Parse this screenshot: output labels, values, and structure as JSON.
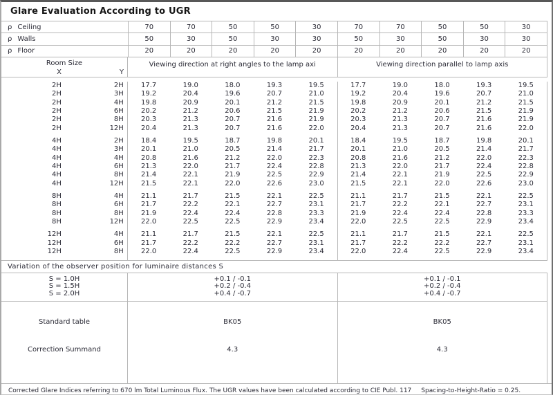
{
  "page": {
    "title": "Glare Evaluation According to UGR",
    "footer_note": "Corrected Glare Indices referring to 670 lm Total Luminous Flux. The UGR values have been calculated according to CIE Publ. 117",
    "footer_ratio": "Spacing-to-Height-Ratio = 0.25."
  },
  "reflectances": {
    "rho_symbol": "ρ",
    "rows": [
      {
        "label": "Ceiling",
        "values": [
          "70",
          "70",
          "50",
          "50",
          "30",
          "70",
          "70",
          "50",
          "50",
          "30"
        ]
      },
      {
        "label": "Walls",
        "values": [
          "50",
          "30",
          "50",
          "30",
          "30",
          "50",
          "30",
          "50",
          "30",
          "30"
        ]
      },
      {
        "label": "Floor",
        "values": [
          "20",
          "20",
          "20",
          "20",
          "20",
          "20",
          "20",
          "20",
          "20",
          "20"
        ]
      }
    ]
  },
  "header": {
    "room_size": "Room Size",
    "x": "X",
    "y": "Y",
    "left_heading": "Viewing direction at right angles to the lamp axi",
    "right_heading": "Viewing direction parallel to lamp axis"
  },
  "ugr_table": {
    "groups": [
      {
        "rows": [
          {
            "x": "2H",
            "y": "2H",
            "right_angles": [
              "17.7",
              "19.0",
              "18.0",
              "19.3",
              "19.5"
            ],
            "parallel": [
              "17.7",
              "19.0",
              "18.0",
              "19.3",
              "19.5"
            ]
          },
          {
            "x": "2H",
            "y": "3H",
            "right_angles": [
              "19.2",
              "20.4",
              "19.6",
              "20.7",
              "21.0"
            ],
            "parallel": [
              "19.2",
              "20.4",
              "19.6",
              "20.7",
              "21.0"
            ]
          },
          {
            "x": "2H",
            "y": "4H",
            "right_angles": [
              "19.8",
              "20.9",
              "20.1",
              "21.2",
              "21.5"
            ],
            "parallel": [
              "19.8",
              "20.9",
              "20.1",
              "21.2",
              "21.5"
            ]
          },
          {
            "x": "2H",
            "y": "6H",
            "right_angles": [
              "20.2",
              "21.2",
              "20.6",
              "21.5",
              "21.9"
            ],
            "parallel": [
              "20.2",
              "21.2",
              "20.6",
              "21.5",
              "21.9"
            ]
          },
          {
            "x": "2H",
            "y": "8H",
            "right_angles": [
              "20.3",
              "21.3",
              "20.7",
              "21.6",
              "21.9"
            ],
            "parallel": [
              "20.3",
              "21.3",
              "20.7",
              "21.6",
              "21.9"
            ]
          },
          {
            "x": "2H",
            "y": "12H",
            "right_angles": [
              "20.4",
              "21.3",
              "20.7",
              "21.6",
              "22.0"
            ],
            "parallel": [
              "20.4",
              "21.3",
              "20.7",
              "21.6",
              "22.0"
            ]
          }
        ]
      },
      {
        "rows": [
          {
            "x": "4H",
            "y": "2H",
            "right_angles": [
              "18.4",
              "19.5",
              "18.7",
              "19.8",
              "20.1"
            ],
            "parallel": [
              "18.4",
              "19.5",
              "18.7",
              "19.8",
              "20.1"
            ]
          },
          {
            "x": "4H",
            "y": "3H",
            "right_angles": [
              "20.1",
              "21.0",
              "20.5",
              "21.4",
              "21.7"
            ],
            "parallel": [
              "20.1",
              "21.0",
              "20.5",
              "21.4",
              "21.7"
            ]
          },
          {
            "x": "4H",
            "y": "4H",
            "right_angles": [
              "20.8",
              "21.6",
              "21.2",
              "22.0",
              "22.3"
            ],
            "parallel": [
              "20.8",
              "21.6",
              "21.2",
              "22.0",
              "22.3"
            ]
          },
          {
            "x": "4H",
            "y": "6H",
            "right_angles": [
              "21.3",
              "22.0",
              "21.7",
              "22.4",
              "22.8"
            ],
            "parallel": [
              "21.3",
              "22.0",
              "21.7",
              "22.4",
              "22.8"
            ]
          },
          {
            "x": "4H",
            "y": "8H",
            "right_angles": [
              "21.4",
              "22.1",
              "21.9",
              "22.5",
              "22.9"
            ],
            "parallel": [
              "21.4",
              "22.1",
              "21.9",
              "22.5",
              "22.9"
            ]
          },
          {
            "x": "4H",
            "y": "12H",
            "right_angles": [
              "21.5",
              "22.1",
              "22.0",
              "22.6",
              "23.0"
            ],
            "parallel": [
              "21.5",
              "22.1",
              "22.0",
              "22.6",
              "23.0"
            ]
          }
        ]
      },
      {
        "rows": [
          {
            "x": "8H",
            "y": "4H",
            "right_angles": [
              "21.1",
              "21.7",
              "21.5",
              "22.1",
              "22.5"
            ],
            "parallel": [
              "21.1",
              "21.7",
              "21.5",
              "22.1",
              "22.5"
            ]
          },
          {
            "x": "8H",
            "y": "6H",
            "right_angles": [
              "21.7",
              "22.2",
              "22.1",
              "22.7",
              "23.1"
            ],
            "parallel": [
              "21.7",
              "22.2",
              "22.1",
              "22.7",
              "23.1"
            ]
          },
          {
            "x": "8H",
            "y": "8H",
            "right_angles": [
              "21.9",
              "22.4",
              "22.4",
              "22.8",
              "23.3"
            ],
            "parallel": [
              "21.9",
              "22.4",
              "22.4",
              "22.8",
              "23.3"
            ]
          },
          {
            "x": "8H",
            "y": "12H",
            "right_angles": [
              "22.0",
              "22.5",
              "22.5",
              "22.9",
              "23.4"
            ],
            "parallel": [
              "22.0",
              "22.5",
              "22.5",
              "22.9",
              "23.4"
            ]
          }
        ]
      },
      {
        "rows": [
          {
            "x": "12H",
            "y": "4H",
            "right_angles": [
              "21.1",
              "21.7",
              "21.5",
              "22.1",
              "22.5"
            ],
            "parallel": [
              "21.1",
              "21.7",
              "21.5",
              "22.1",
              "22.5"
            ]
          },
          {
            "x": "12H",
            "y": "6H",
            "right_angles": [
              "21.7",
              "22.2",
              "22.2",
              "22.7",
              "23.1"
            ],
            "parallel": [
              "21.7",
              "22.2",
              "22.2",
              "22.7",
              "23.1"
            ]
          },
          {
            "x": "12H",
            "y": "8H",
            "right_angles": [
              "22.0",
              "22.4",
              "22.5",
              "22.9",
              "23.4"
            ],
            "parallel": [
              "22.0",
              "22.4",
              "22.5",
              "22.9",
              "23.4"
            ]
          }
        ]
      }
    ]
  },
  "variation": {
    "heading": "Variation of the observer position for luminaire distances S",
    "rows": [
      {
        "label": "S = 1.0H",
        "value": "+0.1 / -0.1"
      },
      {
        "label": "S = 1.5H",
        "value": "+0.2 / -0.4"
      },
      {
        "label": "S = 2.0H",
        "value": "+0.4 / -0.7"
      }
    ]
  },
  "summary": {
    "standard_table_label": "Standard table",
    "correction_label": "Correction Summand",
    "columns": [
      {
        "standard_table": "BK05",
        "correction_summand": "4.3"
      },
      {
        "standard_table": "BK05",
        "correction_summand": "4.3"
      }
    ]
  }
}
